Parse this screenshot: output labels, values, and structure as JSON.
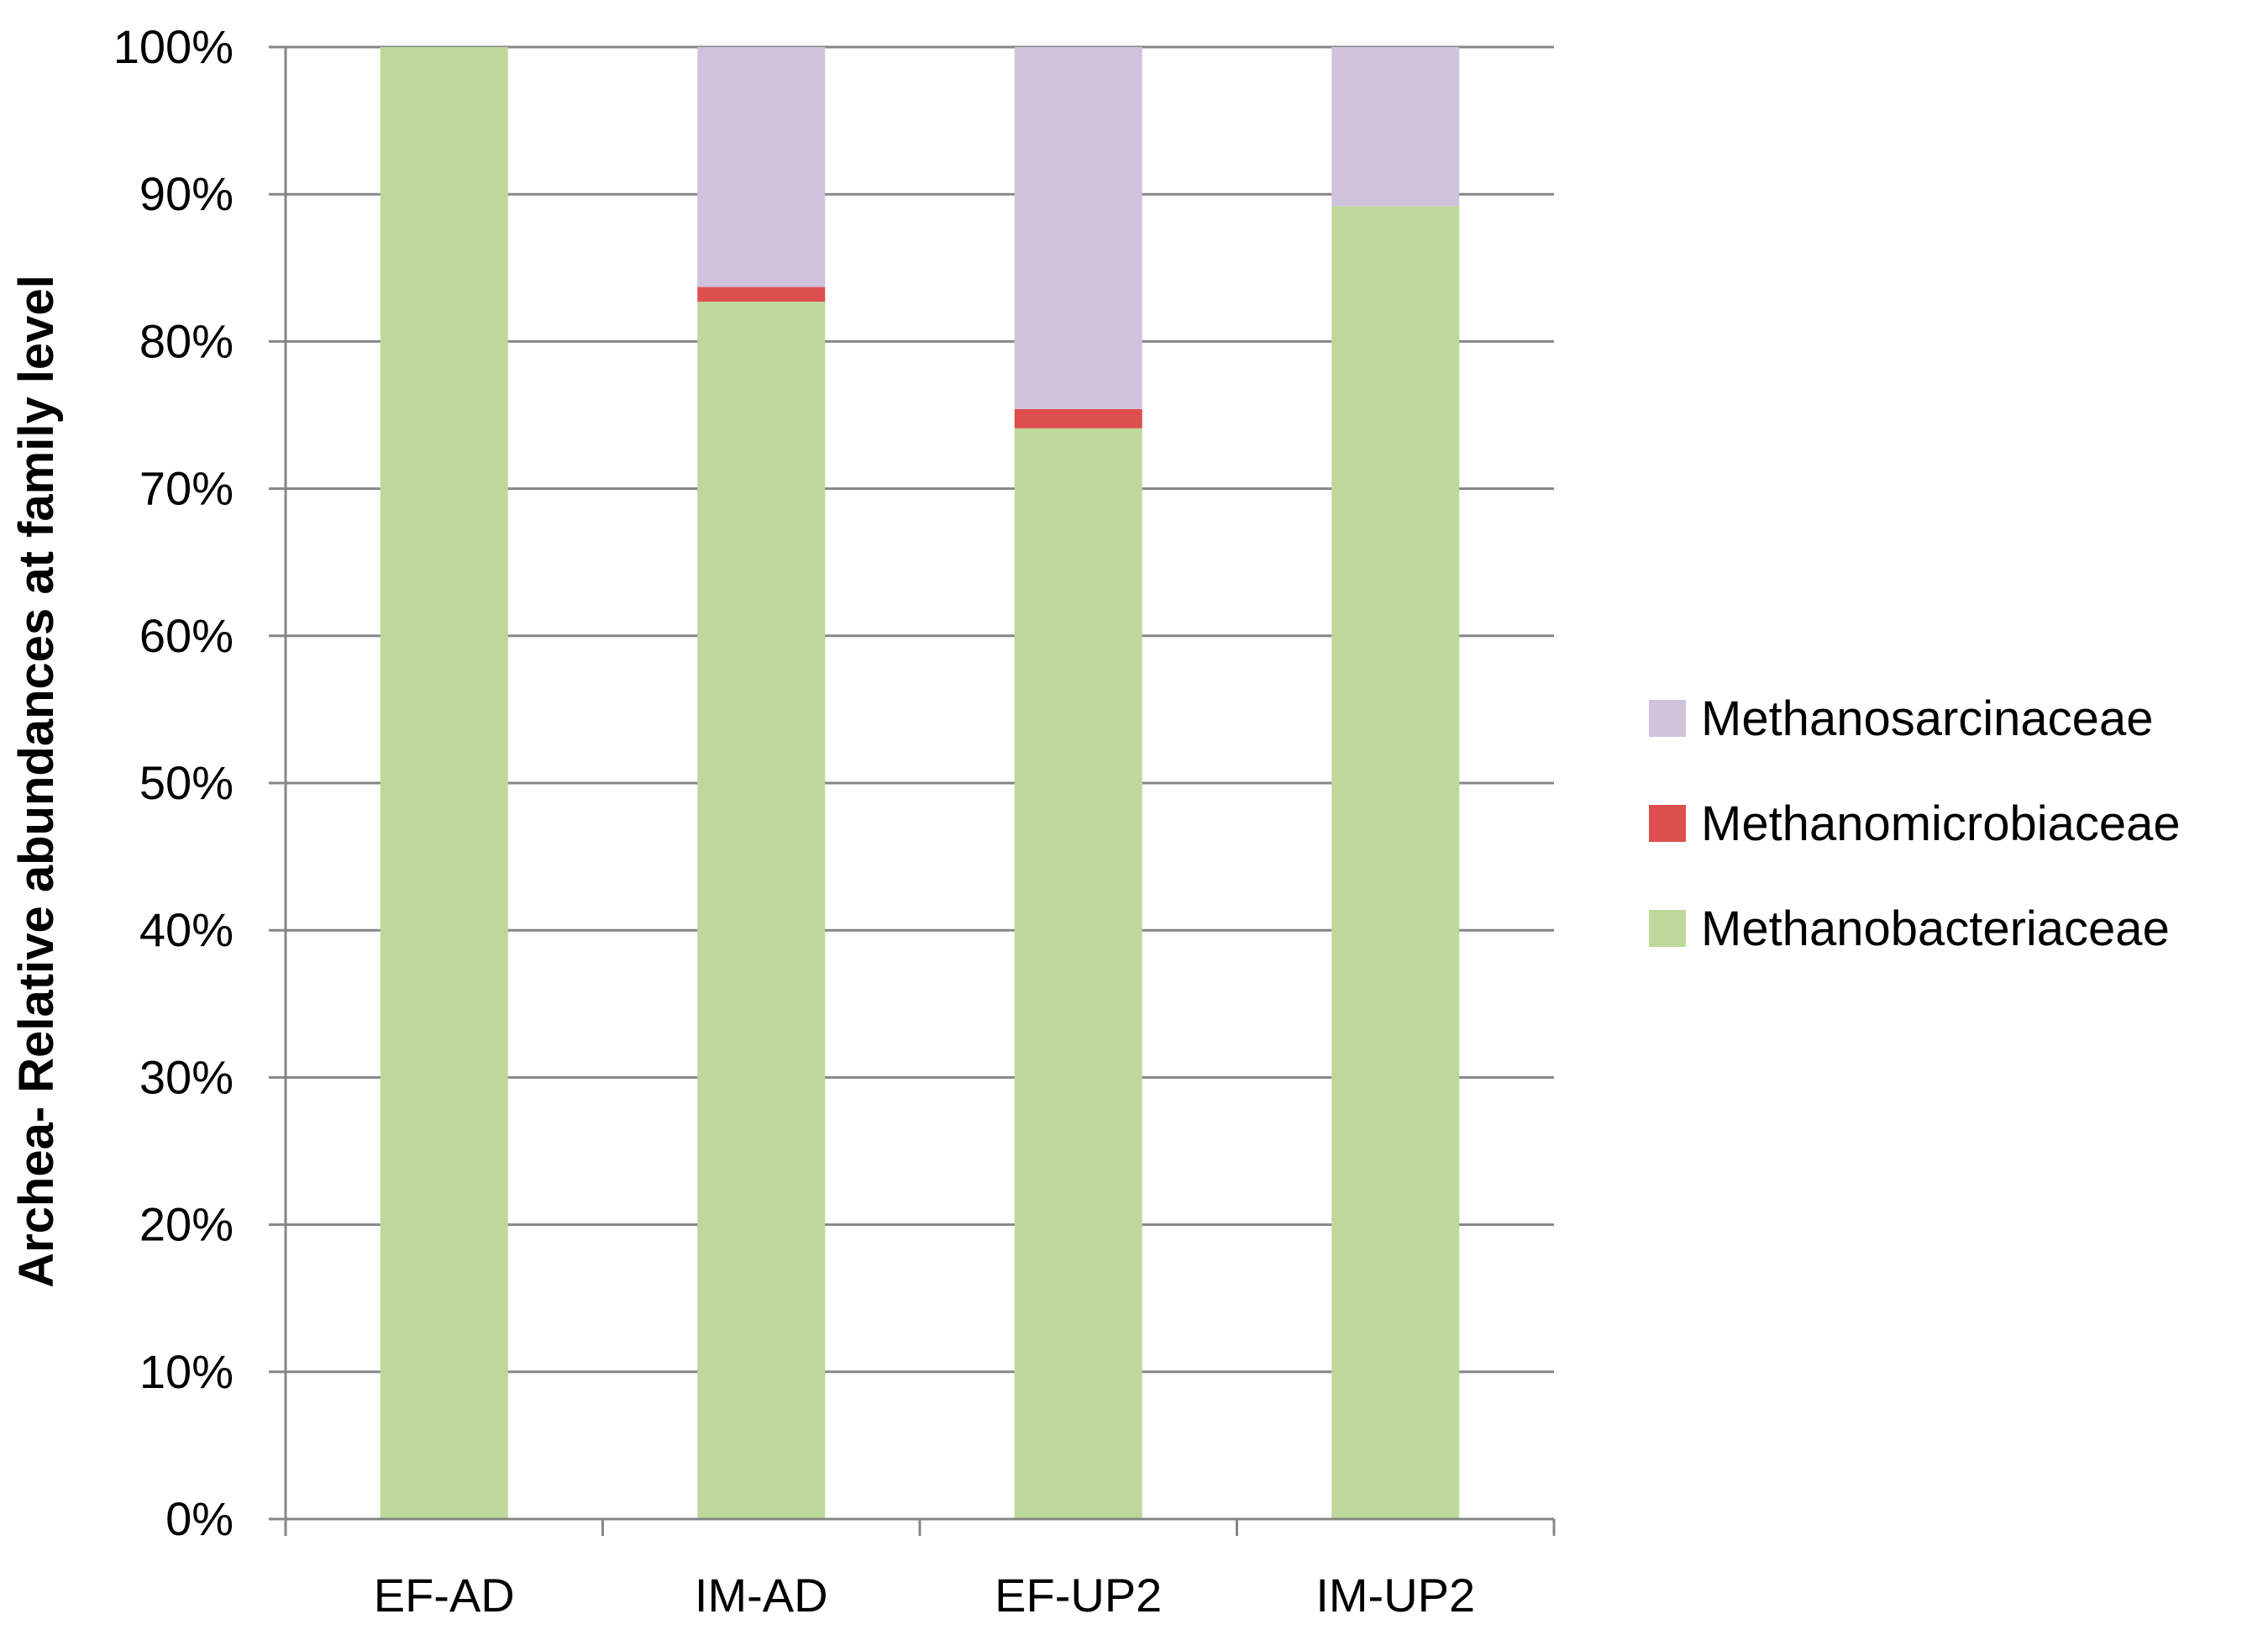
{
  "chart_data": {
    "type": "bar",
    "stacked": true,
    "percent": true,
    "title": "",
    "xlabel": "",
    "ylabel": "Archea- Relative abundances at family level",
    "ylim": [
      0,
      100
    ],
    "yticks": [
      "0%",
      "10%",
      "20%",
      "30%",
      "40%",
      "50%",
      "60%",
      "70%",
      "80%",
      "90%",
      "100%"
    ],
    "categories": [
      "EF-AD",
      "IM-AD",
      "EF-UP2",
      "IM-UP2"
    ],
    "grid": true,
    "legend_position": "right",
    "series": [
      {
        "name": "Methanobacteriaceae",
        "color": "#bdd89a",
        "values": [
          100,
          82.7,
          74.1,
          89.2
        ]
      },
      {
        "name": "Methanomicrobiaceae",
        "color": "#dd4f4f",
        "values": [
          0,
          1.0,
          1.3,
          0
        ]
      },
      {
        "name": "Methanosarcinaceae",
        "color": "#cfc2dc",
        "values": [
          0,
          16.3,
          24.6,
          10.8
        ]
      }
    ],
    "legend_order": [
      "Methanosarcinaceae",
      "Methanomicrobiaceae",
      "Methanobacteriaceae"
    ]
  }
}
